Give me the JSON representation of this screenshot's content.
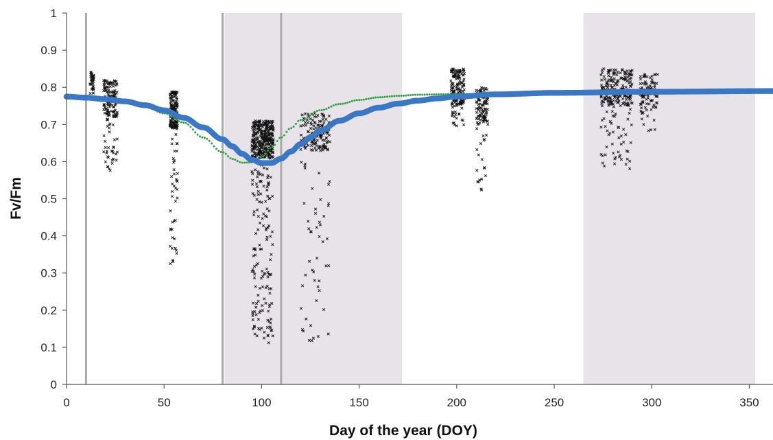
{
  "chart_data": {
    "type": "scatter",
    "title": "",
    "xlabel": "Day of the year (DOY)",
    "ylabel": "Fv/Fm",
    "xlim": [
      0,
      365
    ],
    "ylim": [
      0,
      1
    ],
    "xticks": [
      0,
      50,
      100,
      150,
      200,
      250,
      300,
      350
    ],
    "yticks": [
      0,
      0.1,
      0.2,
      0.3,
      0.4,
      0.5,
      0.6,
      0.7,
      0.8,
      0.9,
      1
    ],
    "ytick_labels": [
      "0",
      "0.1",
      "0.2",
      "0.3",
      "0.4",
      "0.5",
      "0.6",
      "0.7",
      "0.8",
      "0.9",
      "1"
    ],
    "grid": false,
    "legend": "none",
    "shaded_periods": [
      {
        "start": 81,
        "end": 172,
        "color": "#e7e3e8"
      },
      {
        "start": 265,
        "end": 353,
        "color": "#e7e3e8"
      }
    ],
    "vertical_markers": [
      {
        "x": 10,
        "color": "#a9a9a9"
      },
      {
        "x": 80,
        "color": "#a9a9a9"
      },
      {
        "x": 110,
        "color": "#a9a9a9"
      }
    ],
    "observation_clusters": [
      {
        "x_start": 12,
        "x_end": 14,
        "y_center": 0.82,
        "y_low": 0.78,
        "y_high": 0.845,
        "count": 35
      },
      {
        "x_start": 19,
        "x_end": 26,
        "y_center": 0.77,
        "y_low": 0.565,
        "y_high": 0.845,
        "count": 170
      },
      {
        "x_start": 53,
        "x_end": 57,
        "y_center": 0.74,
        "y_low": 0.32,
        "y_high": 0.83,
        "count": 190
      },
      {
        "x_start": 95,
        "x_end": 106,
        "y_center": 0.66,
        "y_low": 0.11,
        "y_high": 0.83,
        "count": 460
      },
      {
        "x_start": 120,
        "x_end": 135,
        "y_center": 0.68,
        "y_low": 0.115,
        "y_high": 0.84,
        "count": 180
      },
      {
        "x_start": 197,
        "x_end": 204,
        "y_center": 0.8,
        "y_low": 0.69,
        "y_high": 0.85,
        "count": 170
      },
      {
        "x_start": 210,
        "x_end": 216,
        "y_center": 0.75,
        "y_low": 0.515,
        "y_high": 0.82,
        "count": 120
      },
      {
        "x_start": 274,
        "x_end": 290,
        "y_center": 0.8,
        "y_low": 0.58,
        "y_high": 0.86,
        "count": 240
      },
      {
        "x_start": 294,
        "x_end": 303,
        "y_center": 0.79,
        "y_low": 0.68,
        "y_high": 0.835,
        "count": 100
      }
    ],
    "series": [
      {
        "color": "#3b78c4",
        "marker": "filled-circle",
        "x": [
          0,
          10,
          20,
          30,
          40,
          50,
          60,
          70,
          80,
          85,
          90,
          95,
          100,
          105,
          110,
          115,
          120,
          125,
          130,
          140,
          150,
          160,
          170,
          180,
          190,
          200,
          220,
          250,
          300,
          365
        ],
        "y": [
          0.775,
          0.772,
          0.768,
          0.762,
          0.752,
          0.738,
          0.718,
          0.692,
          0.66,
          0.641,
          0.621,
          0.605,
          0.596,
          0.596,
          0.608,
          0.627,
          0.647,
          0.665,
          0.683,
          0.71,
          0.73,
          0.745,
          0.756,
          0.764,
          0.77,
          0.775,
          0.781,
          0.785,
          0.788,
          0.79
        ]
      },
      {
        "color": "#2ea043",
        "marker": "small-dot",
        "x": [
          0,
          10,
          20,
          30,
          40,
          50,
          60,
          70,
          80,
          85,
          90,
          95,
          100,
          105,
          110,
          115,
          120,
          130,
          140,
          150,
          160,
          170,
          180,
          190,
          200,
          250,
          300,
          365
        ],
        "y": [
          0.775,
          0.772,
          0.768,
          0.762,
          0.75,
          0.73,
          0.705,
          0.665,
          0.625,
          0.607,
          0.597,
          0.598,
          0.612,
          0.637,
          0.665,
          0.69,
          0.712,
          0.738,
          0.755,
          0.766,
          0.773,
          0.777,
          0.78,
          0.781,
          0.782,
          0.785,
          0.788,
          0.79
        ]
      }
    ]
  }
}
